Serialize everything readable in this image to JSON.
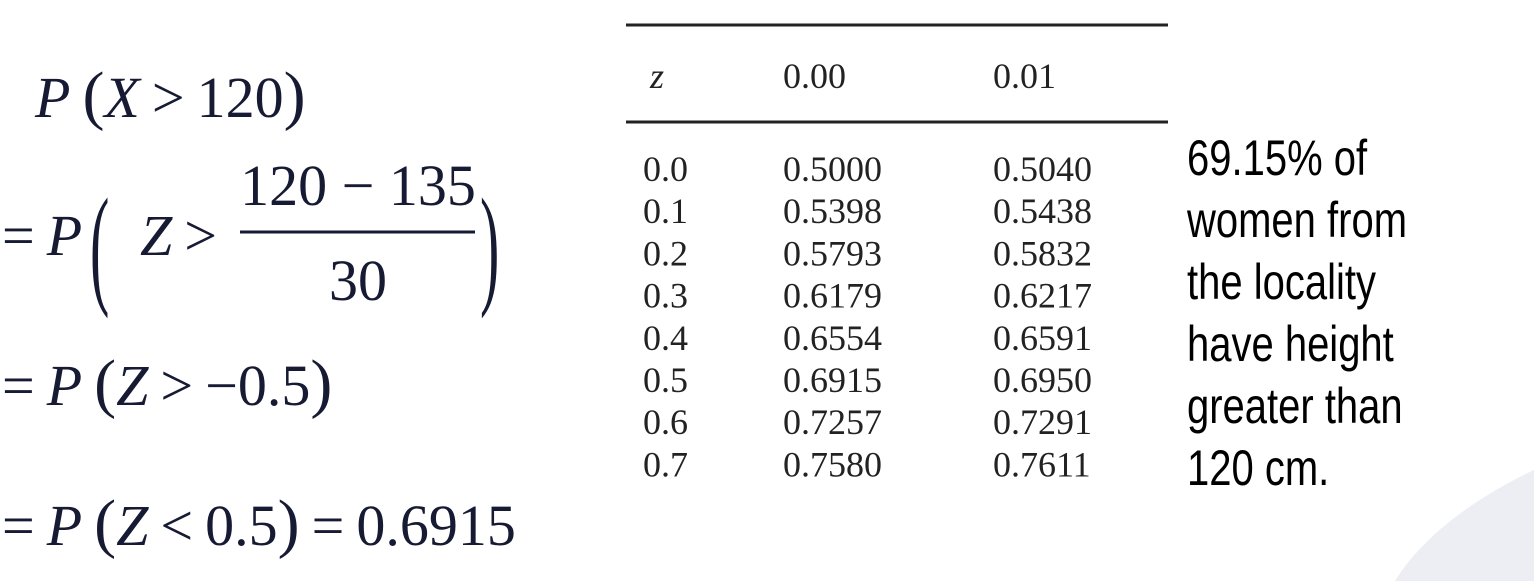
{
  "math": {
    "line1": [
      "P",
      "(",
      "X",
      ">",
      "120",
      ")"
    ],
    "line2": {
      "prefix": [
        "=",
        "P"
      ],
      "open": "(",
      "inner": [
        "Z",
        ">"
      ],
      "numerator": "120 − 135",
      "denominator": "30",
      "close": ")"
    },
    "line3": [
      "=",
      "P",
      "(",
      "Z",
      ">",
      "−0.5",
      ")"
    ],
    "line4": [
      "=",
      "P",
      "(",
      "Z",
      "<",
      "0.5",
      ")",
      "=",
      "0.6915"
    ]
  },
  "table": {
    "header": [
      "z",
      "0.00",
      "0.01"
    ],
    "rows": [
      [
        "0.0",
        "0.5000",
        "0.5040"
      ],
      [
        "0.1",
        "0.5398",
        "0.5438"
      ],
      [
        "0.2",
        "0.5793",
        "0.5832"
      ],
      [
        "0.3",
        "0.6179",
        "0.6217"
      ],
      [
        "0.4",
        "0.6554",
        "0.6591"
      ],
      [
        "0.5",
        "0.6915",
        "0.6950"
      ],
      [
        "0.6",
        "0.7257",
        "0.7291"
      ],
      [
        "0.7",
        "0.7580",
        "0.7611"
      ]
    ]
  },
  "caption": [
    "69.15% of",
    "women from",
    "the locality",
    "have height",
    "greater than",
    "120 cm."
  ]
}
